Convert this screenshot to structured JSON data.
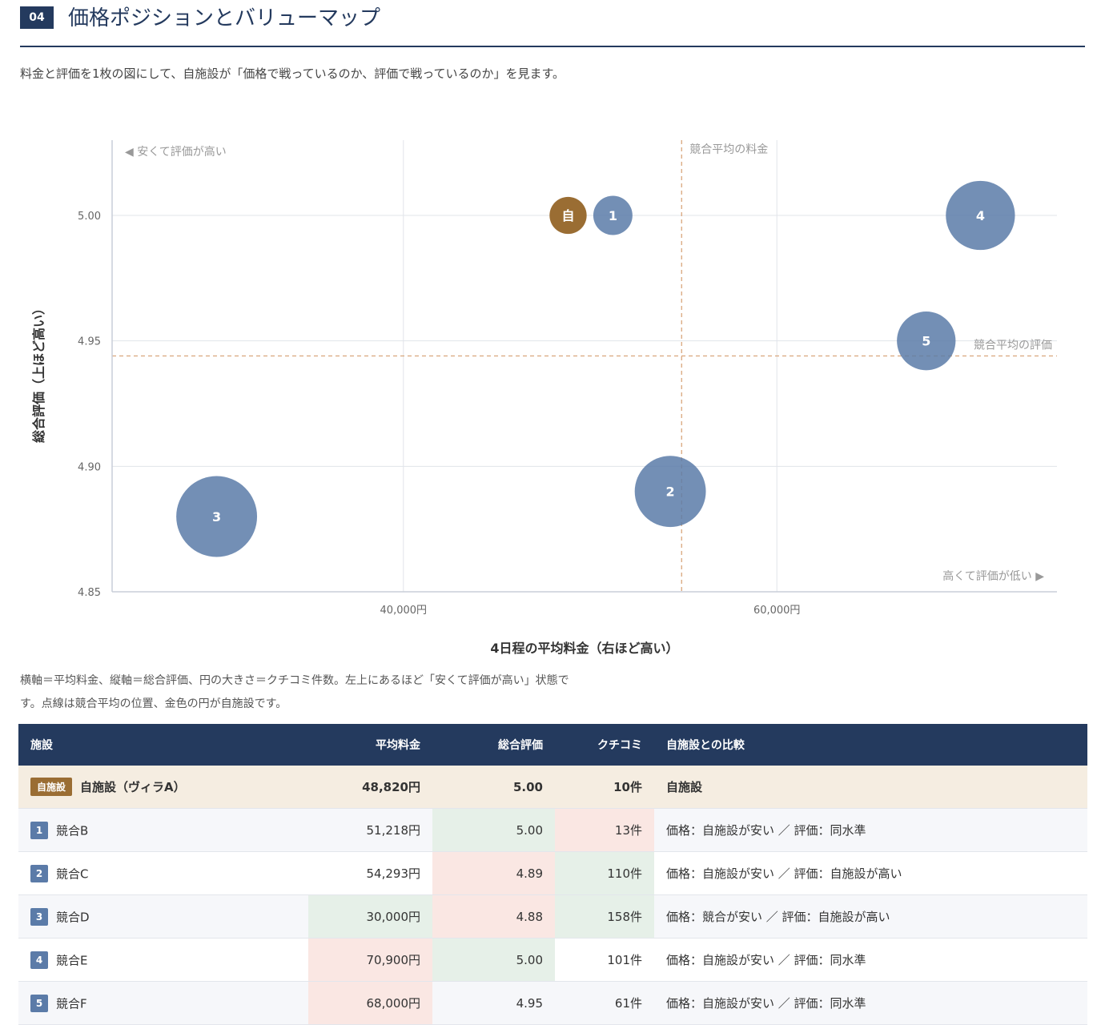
{
  "section": {
    "number": "04",
    "title": "価格ポジションとバリューマップ"
  },
  "intro": "料金と評価を1枚の図にして、自施設が「価格で戦っているのか、評価で戦っているのか」を見ます。",
  "chart_data": {
    "type": "scatter",
    "xlabel": "4日程の平均料金（右ほど高い）",
    "ylabel": "総合評価（上ほど高い）",
    "xlim": [
      24400,
      75000
    ],
    "ylim": [
      4.85,
      5.03
    ],
    "xticks": [
      40000,
      60000
    ],
    "xtick_labels": [
      "40,000円",
      "60,000円"
    ],
    "yticks": [
      4.85,
      4.9,
      4.95,
      5.0
    ],
    "ytick_labels": [
      "4.85",
      "4.90",
      "4.95",
      "5.00"
    ],
    "grid": true,
    "avg_price": 54900,
    "avg_rating": 4.944,
    "avg_price_label": "競合平均の料金",
    "avg_rating_label": "競合平均の評価",
    "corner_top_left": "◀ 安くて評価が高い",
    "corner_bottom_right": "高くて評価が低い ▶",
    "own_color": "#9a6d33",
    "comp_color": "#5b7ba8",
    "points": [
      {
        "label": "自",
        "x": 48820,
        "y": 5.0,
        "reviews": 10,
        "own": true
      },
      {
        "label": "1",
        "x": 51218,
        "y": 5.0,
        "reviews": 13,
        "own": false
      },
      {
        "label": "2",
        "x": 54293,
        "y": 4.89,
        "reviews": 110,
        "own": false
      },
      {
        "label": "3",
        "x": 30000,
        "y": 4.88,
        "reviews": 158,
        "own": false
      },
      {
        "label": "4",
        "x": 70900,
        "y": 5.0,
        "reviews": 101,
        "own": false
      },
      {
        "label": "5",
        "x": 68000,
        "y": 4.95,
        "reviews": 61,
        "own": false
      }
    ]
  },
  "note": "横軸＝平均料金、縦軸＝総合評価、円の大きさ＝クチコミ件数。左上にあるほど「安くて評価が高い」状態です。点線は競合平均の位置、金色の円が自施設です。",
  "table": {
    "headers": {
      "facility": "施設",
      "price": "平均料金",
      "rating": "総合評価",
      "reviews": "クチコミ",
      "compare": "自施設との比較"
    },
    "own": {
      "badge": "自施設",
      "name": "自施設（ヴィラA）",
      "price": "48,820円",
      "rating": "5.00",
      "reviews": "10件",
      "compare": "自施設"
    },
    "rows": [
      {
        "num": "1",
        "name": "競合B",
        "price": "51,218円",
        "rating": "5.00",
        "reviews": "13件",
        "compare": "価格：自施設が安い ／ 評価：同水準"
      },
      {
        "num": "2",
        "name": "競合C",
        "price": "54,293円",
        "rating": "4.89",
        "reviews": "110件",
        "compare": "価格：自施設が安い ／ 評価：自施設が高い"
      },
      {
        "num": "3",
        "name": "競合D",
        "price": "30,000円",
        "rating": "4.88",
        "reviews": "158件",
        "compare": "価格：競合が安い ／ 評価：自施設が高い"
      },
      {
        "num": "4",
        "name": "競合E",
        "price": "70,900円",
        "rating": "5.00",
        "reviews": "101件",
        "compare": "価格：自施設が安い ／ 評価：同水準"
      },
      {
        "num": "5",
        "name": "競合F",
        "price": "68,000円",
        "rating": "4.95",
        "reviews": "61件",
        "compare": "価格：自施設が安い ／ 評価：同水準"
      }
    ]
  }
}
